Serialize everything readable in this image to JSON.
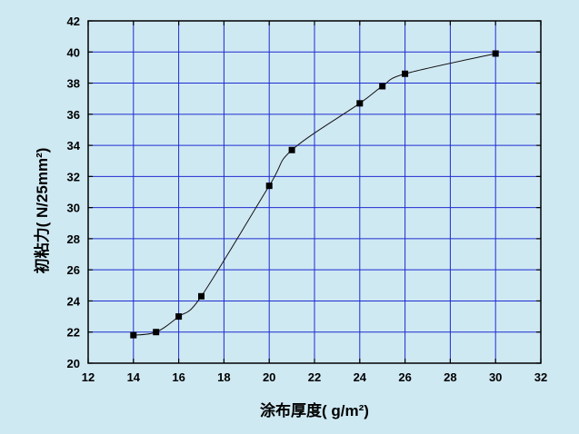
{
  "chart_data": {
    "type": "scatter",
    "title": "",
    "xlabel": "涂布厚度( g/m²)",
    "ylabel": "初粘力( N/25mm²)",
    "xlim": [
      12,
      32
    ],
    "ylim": [
      20,
      42
    ],
    "x_ticks": [
      12,
      14,
      16,
      18,
      20,
      22,
      24,
      26,
      28,
      30,
      32
    ],
    "y_ticks": [
      20,
      22,
      24,
      26,
      28,
      30,
      32,
      34,
      36,
      38,
      40,
      42
    ],
    "grid": true,
    "series": [
      {
        "points": [
          {
            "x": 14,
            "y": 21.8
          },
          {
            "x": 15,
            "y": 22.0
          },
          {
            "x": 16,
            "y": 23.0
          },
          {
            "x": 17,
            "y": 24.3
          },
          {
            "x": 20,
            "y": 31.4
          },
          {
            "x": 21,
            "y": 33.7
          },
          {
            "x": 24,
            "y": 36.7
          },
          {
            "x": 25,
            "y": 37.8
          },
          {
            "x": 26,
            "y": 38.6
          },
          {
            "x": 30,
            "y": 39.9
          }
        ],
        "fit_curve": true
      }
    ]
  }
}
